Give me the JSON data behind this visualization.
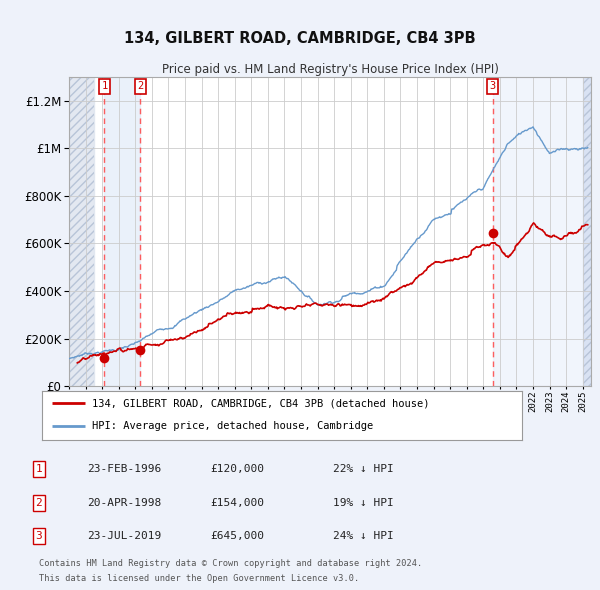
{
  "title1": "134, GILBERT ROAD, CAMBRIDGE, CB4 3PB",
  "title2": "Price paid vs. HM Land Registry's House Price Index (HPI)",
  "ylim": [
    0,
    1300000
  ],
  "yticks": [
    0,
    200000,
    400000,
    600000,
    800000,
    1000000,
    1200000
  ],
  "ytick_labels": [
    "£0",
    "£200K",
    "£400K",
    "£600K",
    "£800K",
    "£1M",
    "£1.2M"
  ],
  "bg_color": "#eef2fa",
  "plot_bg": "#ffffff",
  "grid_color": "#cccccc",
  "hpi_color": "#6699cc",
  "price_color": "#cc0000",
  "transactions": [
    {
      "num": 1,
      "date_x": 1996.14,
      "price": 120000
    },
    {
      "num": 2,
      "date_x": 1998.31,
      "price": 154000
    },
    {
      "num": 3,
      "date_x": 2019.56,
      "price": 645000
    }
  ],
  "legend_line1": "134, GILBERT ROAD, CAMBRIDGE, CB4 3PB (detached house)",
  "legend_line2": "HPI: Average price, detached house, Cambridge",
  "footer1": "Contains HM Land Registry data © Crown copyright and database right 2024.",
  "footer2": "This data is licensed under the Open Government Licence v3.0.",
  "table_rows": [
    [
      "1",
      "23-FEB-1996",
      "£120,000",
      "22% ↓ HPI"
    ],
    [
      "2",
      "20-APR-1998",
      "£154,000",
      "19% ↓ HPI"
    ],
    [
      "3",
      "23-JUL-2019",
      "£645,000",
      "24% ↓ HPI"
    ]
  ],
  "xmin": 1994.0,
  "xmax": 2025.5
}
